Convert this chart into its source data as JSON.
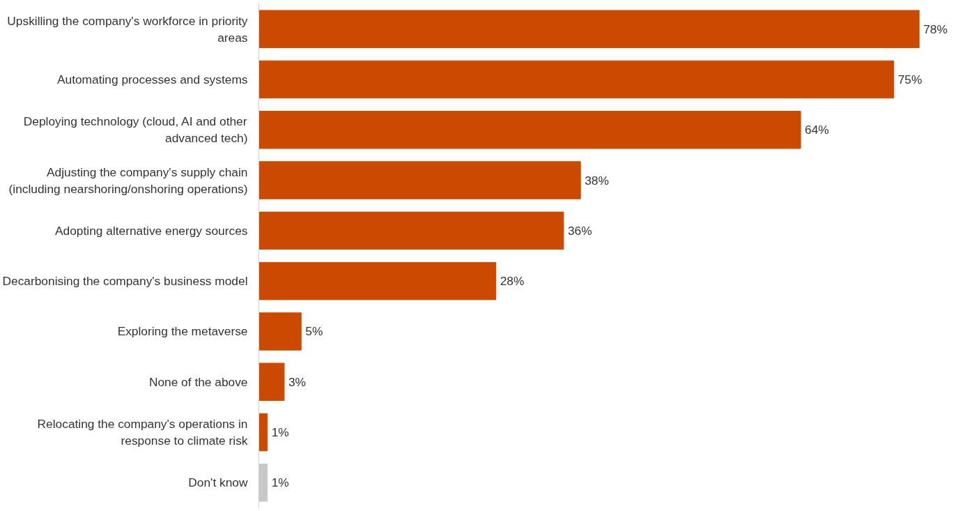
{
  "chart_data": {
    "type": "bar",
    "orientation": "horizontal",
    "categories": [
      "Upskilling the company's workforce in priority areas",
      "Automating processes and systems",
      "Deploying technology (cloud, AI and other advanced tech)",
      "Adjusting the company's supply chain (including nearshoring/onshoring operations)",
      "Adopting alternative energy sources",
      "Decarbonising the company's business model",
      "Exploring the metaverse",
      "None of the above",
      "Relocating the company's operations in response to climate risk",
      "Don't know"
    ],
    "values": [
      78,
      75,
      64,
      38,
      36,
      28,
      5,
      3,
      1,
      1
    ],
    "colors": [
      "#cc4a00",
      "#cc4a00",
      "#cc4a00",
      "#cc4a00",
      "#cc4a00",
      "#cc4a00",
      "#cc4a00",
      "#cc4a00",
      "#cc4a00",
      "#c8c8c8"
    ],
    "value_labels": [
      "78%",
      "75%",
      "64%",
      "38%",
      "36%",
      "28%",
      "5%",
      "3%",
      "1%",
      "1%"
    ],
    "tick_labels": "y",
    "grid": false
  }
}
